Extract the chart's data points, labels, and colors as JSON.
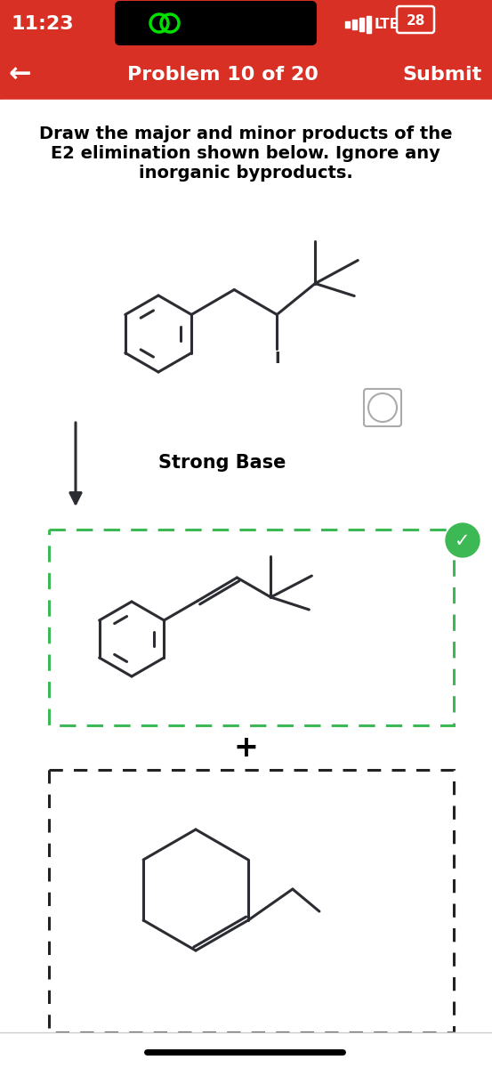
{
  "bg_red": "#d93025",
  "bg_white": "#ffffff",
  "status_time": "11:23",
  "nav_title": "Problem 10 of 20",
  "nav_submit": "Submit",
  "arrow_label": "Strong Base",
  "plus_sign": "+",
  "dashed_border_green": "#3cb954",
  "dashed_border_black": "#222222",
  "check_color": "#3cb954",
  "mol_color": "#2b2d32",
  "lw": 2.2,
  "arrow_color": "#2b2d32"
}
